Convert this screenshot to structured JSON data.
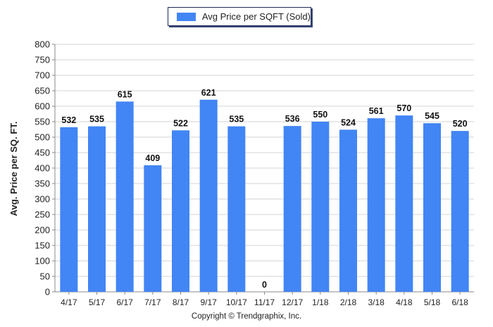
{
  "legend": {
    "label": "Avg Price per SQFT (Sold)",
    "color": "#4285f4"
  },
  "copyright": "Copyright © Trendgraphix, Inc.",
  "chart_data": {
    "type": "bar",
    "categories": [
      "4/17",
      "5/17",
      "6/17",
      "7/17",
      "8/17",
      "9/17",
      "10/17",
      "11/17",
      "12/17",
      "1/18",
      "2/18",
      "3/18",
      "4/18",
      "5/18",
      "6/18"
    ],
    "series": [
      {
        "name": "Avg Price per SQFT (Sold)",
        "values": [
          532,
          535,
          615,
          409,
          522,
          621,
          535,
          0,
          536,
          550,
          524,
          561,
          570,
          545,
          520
        ]
      }
    ],
    "data_labels": [
      "532",
      "535",
      "615",
      "409",
      "522",
      "621",
      "535",
      "0",
      "536",
      "550",
      "524",
      "561",
      "570",
      "545",
      "520"
    ],
    "xlabel": "",
    "ylabel": "Avg. Price per SQ. FT.",
    "ylim": [
      0,
      800
    ],
    "yticks": [
      "0",
      "50",
      "100",
      "150",
      "200",
      "250",
      "300",
      "350",
      "400",
      "450",
      "500",
      "550",
      "600",
      "650",
      "700",
      "750",
      "800"
    ],
    "grid": true,
    "legend_position": "top-center",
    "bar_color": "#4285f4"
  }
}
